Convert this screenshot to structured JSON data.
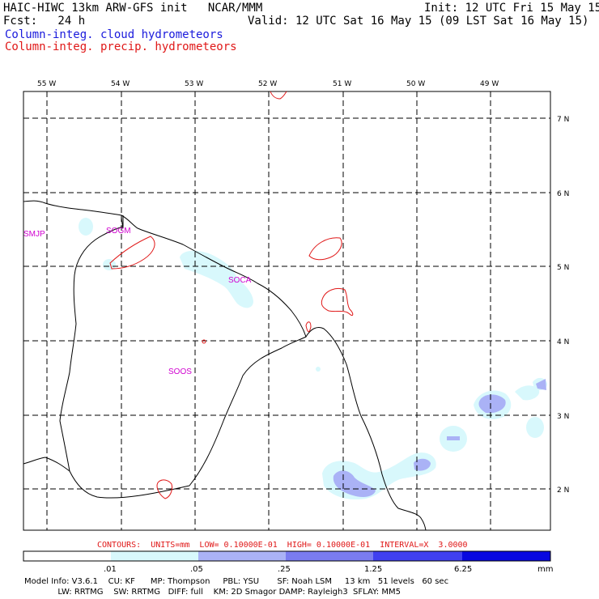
{
  "header": {
    "title_left": "HAIC-HIWC 13km ARW-GFS init   NCAR/MMM",
    "fcst": "Fcst:   24 h",
    "init": "Init: 12 UTC Fri 15 May 15",
    "valid": "Valid: 12 UTC Sat 16 May 15 (09 LST Sat 16 May 15)",
    "legend_cloud": "Column-integ. cloud hydrometeors",
    "legend_precip": "Column-integ. precip. hydrometeors"
  },
  "map": {
    "lon_labels": [
      "55 W",
      "54 W",
      "53 W",
      "52 W",
      "51 W",
      "50 W",
      "49 W"
    ],
    "lat_labels": [
      "7 N",
      "6 N",
      "5 N",
      "4 N",
      "3 N",
      "2 N"
    ],
    "stations": [
      "SMJP",
      "SOGM",
      "SOCA",
      "SOOS"
    ]
  },
  "contours_line": "CONTOURS:  UNITS=mm  LOW= 0.10000E-01  HIGH= 0.10000E-01  INTERVAL=X  3.0000",
  "colorbar": {
    "ticks": [
      ".01",
      ".05",
      ".25",
      "1.25",
      "6.25"
    ],
    "units": "mm",
    "colors": [
      "#ffffff",
      "#d8f8fc",
      "#aab2f6",
      "#7a7cf0",
      "#4040f0",
      "#0808e0"
    ]
  },
  "colors": {
    "cloud_shade_light": "#d8f8fc",
    "cloud_shade_mid": "#aab2f6",
    "precip_contour": "#e01818",
    "station_label": "#d000d0",
    "legend_blue": "#1a1adc"
  },
  "footer": {
    "line1": "Model Info: V3.6.1    CU: KF      MP: Thompson     PBL: YSU       SF: Noah LSM     13 km   51 levels   60 sec",
    "line2": "             LW: RRTMG    SW: RRTMG   DIFF: full    KM: 2D Smagor DAMP: Rayleigh3  SFLAY: MM5"
  }
}
